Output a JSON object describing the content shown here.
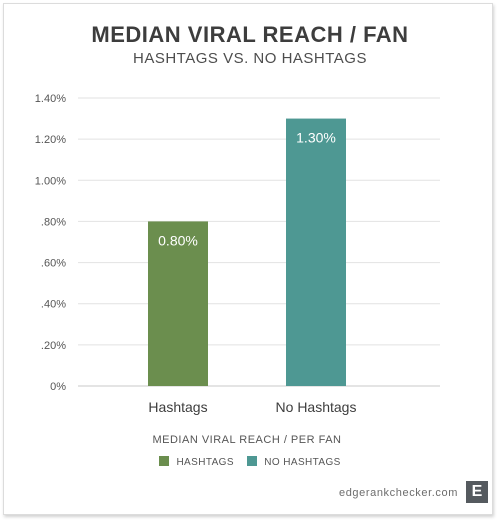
{
  "chart_data": {
    "type": "bar",
    "title": "MEDIAN VIRAL REACH / FAN",
    "subtitle": "HASHTAGS VS. NO HASHTAGS",
    "xlabel": "MEDIAN VIRAL REACH / PER FAN",
    "ylabel": "",
    "ylim": [
      0,
      1.4
    ],
    "grid": true,
    "y_ticks": [
      {
        "value": 0,
        "label": "0%"
      },
      {
        "value": 0.2,
        "label": ".20%"
      },
      {
        "value": 0.4,
        "label": ".40%"
      },
      {
        "value": 0.6,
        "label": ".60%"
      },
      {
        "value": 0.8,
        "label": ".80%"
      },
      {
        "value": 1.0,
        "label": "1.00%"
      },
      {
        "value": 1.2,
        "label": "1.20%"
      },
      {
        "value": 1.4,
        "label": "1.40%"
      }
    ],
    "categories": [
      "Hashtags",
      "No Hashtags"
    ],
    "values": [
      0.8,
      1.3
    ],
    "data_labels": [
      "0.80%",
      "1.30%"
    ],
    "colors": [
      "#6b8e4e",
      "#4e9893"
    ],
    "legend": {
      "placement": "bottom-center",
      "entries": [
        {
          "label": "HASHTAGS",
          "color": "#6b8e4e"
        },
        {
          "label": "NO HASHTAGS",
          "color": "#4e9893"
        }
      ]
    }
  },
  "footer": {
    "brand": "edgerankchecker.com",
    "logo_letter": "E"
  }
}
